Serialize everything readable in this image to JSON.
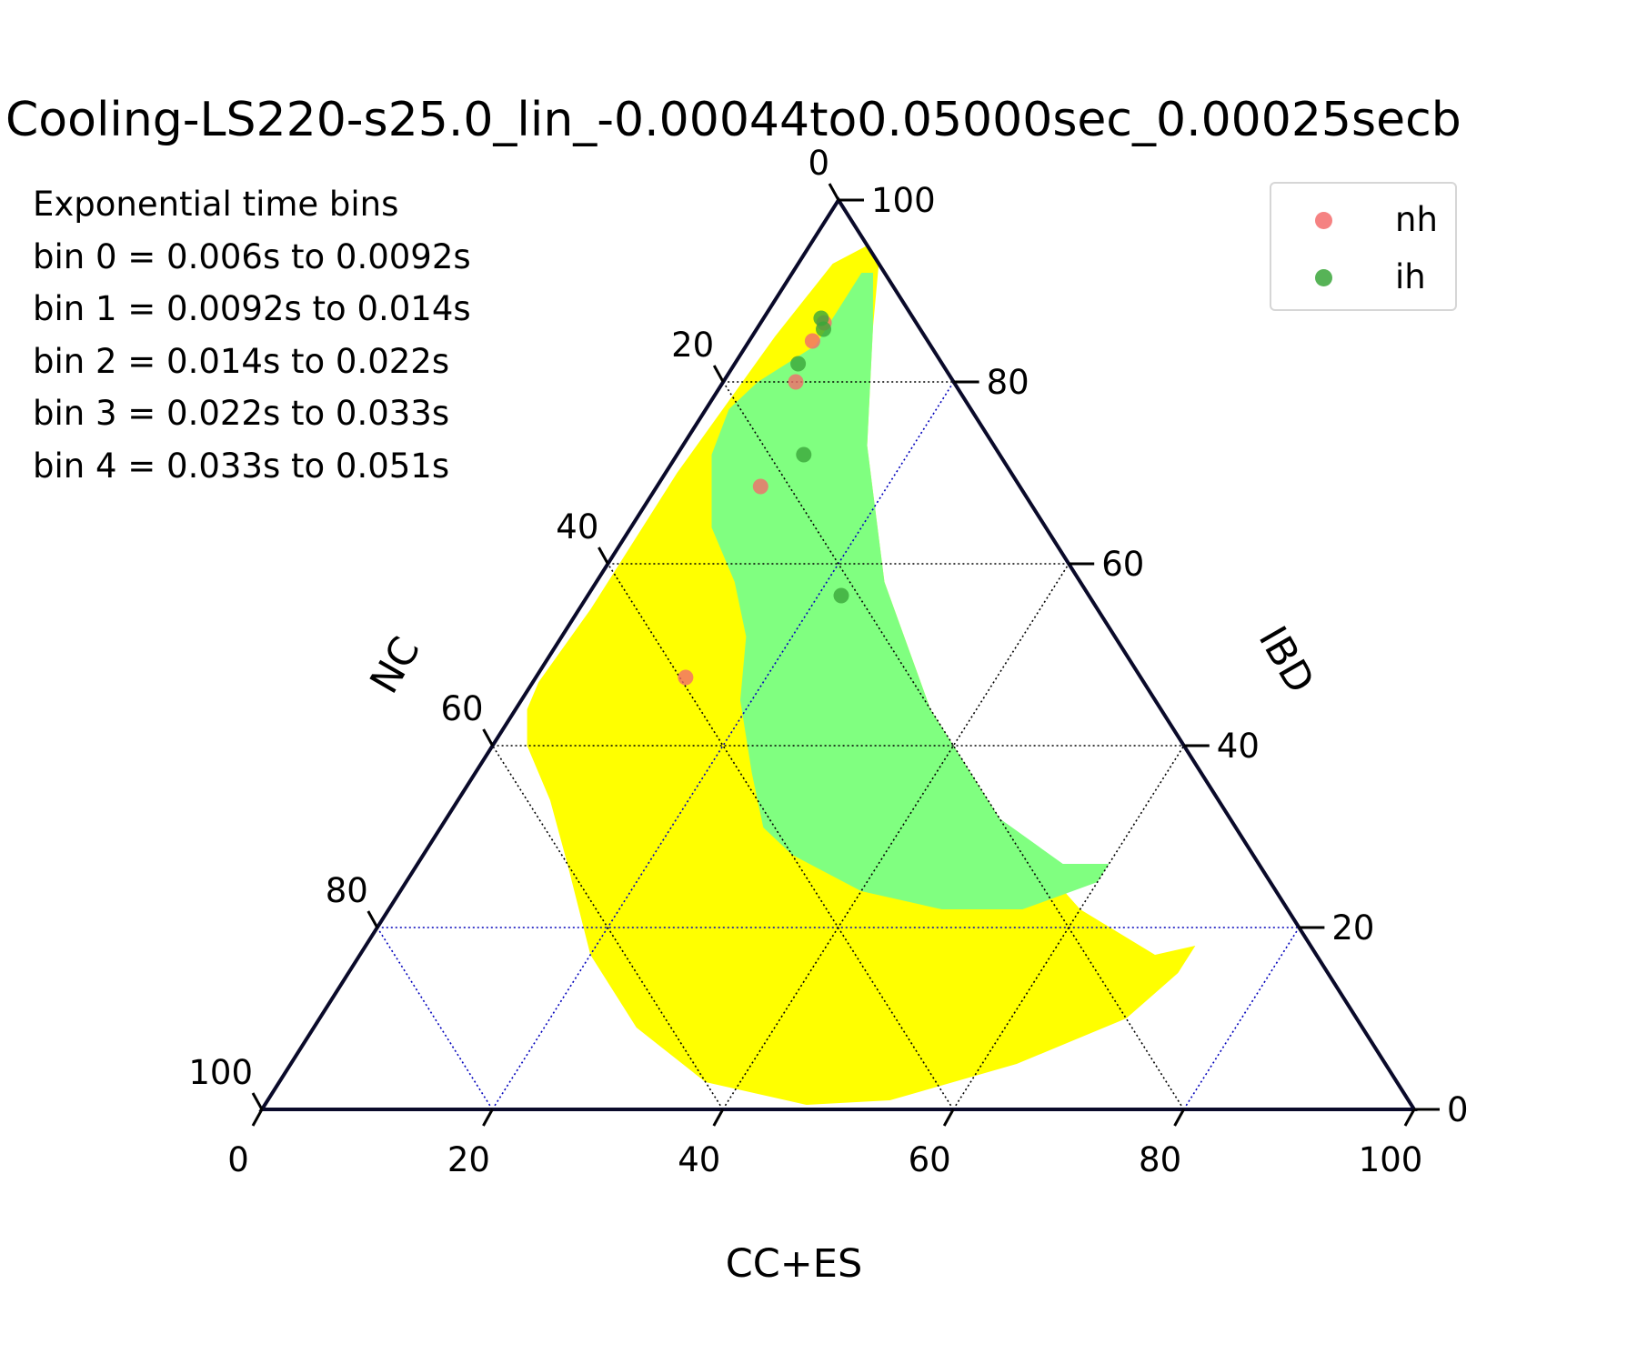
{
  "chart_data": {
    "type": "scatter",
    "subtype": "ternary",
    "title": "Cooling-LS220-s25.0_lin_-0.00044to0.05000sec_0.00025secb",
    "annotations": [
      "Exponential time bins",
      "bin 0 = 0.006s to 0.0092s",
      "bin 1 = 0.0092s to 0.014s",
      "bin 2 = 0.014s to 0.022s",
      "bin 3 = 0.022s to 0.033s",
      "bin 4 = 0.033s to 0.051s"
    ],
    "axes": {
      "bottom": {
        "label": "CC+ES",
        "ticks": [
          "0",
          "20",
          "40",
          "60",
          "80",
          "100"
        ]
      },
      "left": {
        "label": "NC",
        "ticks": [
          "0",
          "20",
          "40",
          "60",
          "80",
          "100"
        ]
      },
      "right": {
        "label": "IBD",
        "ticks": [
          "0",
          "20",
          "40",
          "60",
          "80",
          "100"
        ]
      }
    },
    "axis_ranges": {
      "bottom": [
        0,
        100
      ],
      "left": [
        0,
        100
      ],
      "right": [
        0,
        100
      ]
    },
    "grid": true,
    "legend_position": "top-right",
    "colors": {
      "nh": "#f36c6c",
      "ih": "#3aa63a",
      "nh_region": "#ffff00",
      "ih_region": "#80ff80",
      "frame": "#0a0a2a",
      "grid_region": "#000000",
      "grid_outside": "#0000bb"
    },
    "series": [
      {
        "name": "nh",
        "points": [
          {
            "bottom": 5.5,
            "right": 86.5
          },
          {
            "bottom": 5.5,
            "right": 84.5
          },
          {
            "bottom": 6.3,
            "right": 80.0
          },
          {
            "bottom": 9.0,
            "right": 68.5
          },
          {
            "bottom": 13.0,
            "right": 47.5
          }
        ]
      },
      {
        "name": "ih",
        "points": [
          {
            "bottom": 5.0,
            "right": 87.0
          },
          {
            "bottom": 5.8,
            "right": 85.8
          },
          {
            "bottom": 5.5,
            "right": 82.0
          },
          {
            "bottom": 11.0,
            "right": 72.0
          },
          {
            "bottom": 22.0,
            "right": 56.5
          }
        ]
      }
    ],
    "regions": [
      {
        "name": "nh",
        "polygon": [
          [
            5,
            95
          ],
          [
            7,
            93
          ],
          [
            10,
            86
          ],
          [
            16,
            73
          ],
          [
            25,
            58
          ],
          [
            36,
            44
          ],
          [
            48,
            32
          ],
          [
            60,
            22
          ],
          [
            69,
            17
          ],
          [
            72,
            18
          ],
          [
            72,
            15
          ],
          [
            70,
            10
          ],
          [
            63,
            5
          ],
          [
            54,
            1
          ],
          [
            47,
            0.5
          ],
          [
            37,
            3
          ],
          [
            28,
            9
          ],
          [
            20,
            17
          ],
          [
            13,
            27
          ],
          [
            8,
            34
          ],
          [
            3,
            40
          ],
          [
            1,
            44
          ],
          [
            0.5,
            47
          ],
          [
            1,
            55
          ],
          [
            1,
            70
          ],
          [
            2,
            85
          ],
          [
            3,
            93
          ]
        ]
      },
      {
        "name": "ih",
        "polygon": [
          [
            6,
            92
          ],
          [
            7,
            92
          ],
          [
            10,
            86
          ],
          [
            16,
            73
          ],
          [
            25,
            58
          ],
          [
            36,
            44
          ],
          [
            48,
            32
          ],
          [
            56,
            27
          ],
          [
            60,
            27
          ],
          [
            60,
            25
          ],
          [
            55,
            22
          ],
          [
            48,
            22
          ],
          [
            40,
            24
          ],
          [
            32,
            28
          ],
          [
            28,
            31
          ],
          [
            24,
            37
          ],
          [
            19,
            45
          ],
          [
            16,
            52
          ],
          [
            12,
            58
          ],
          [
            7,
            64
          ],
          [
            5,
            68
          ],
          [
            3,
            72
          ],
          [
            2,
            77
          ],
          [
            3,
            80
          ],
          [
            6,
            84
          ]
        ]
      }
    ]
  }
}
